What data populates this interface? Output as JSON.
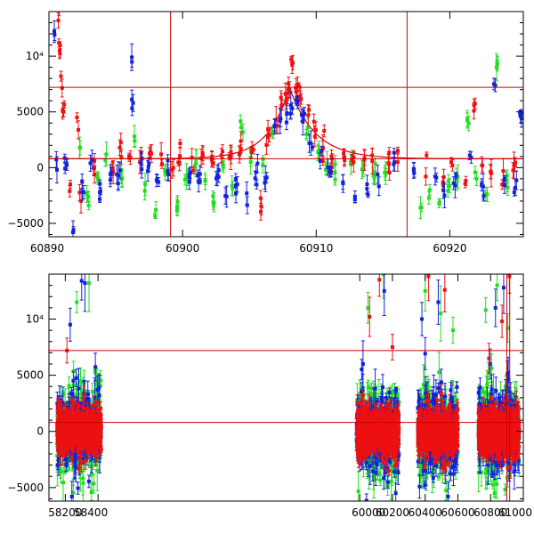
{
  "colors": {
    "band_g": "#22dd22",
    "band_r": "#ee1111",
    "band_b": "#1122dd",
    "marker_lines": "#cc0000"
  },
  "chart_data": [
    {
      "type": "scatter",
      "title": "",
      "xlabel": "",
      "ylabel": "",
      "xlim": [
        60890,
        60925.5
      ],
      "ylim": [
        -6200,
        14000
      ],
      "xticks": [
        60890,
        60900,
        60910,
        60920
      ],
      "xtick_labels": [
        "60890",
        "60900",
        "60910",
        "60920"
      ],
      "yticks": [
        -5000,
        0,
        5000,
        10000
      ],
      "ytick_labels": [
        "−5000",
        "0",
        "5000",
        "10⁴"
      ],
      "hlines": [
        7200,
        800
      ],
      "vlines": [
        60899.1,
        60916.8
      ],
      "model_curve": {
        "baseline": 800,
        "peak_time": 60908.0,
        "peak_flux": 7200,
        "rise_tau": 1.6,
        "fall_tau": 1.9
      },
      "series": [
        {
          "name": "g",
          "color": "#22dd22",
          "points": [
            [
              60892.3,
              1800
            ],
            [
              60892.9,
              -2600
            ],
            [
              60893.6,
              -800
            ],
            [
              60894.3,
              1200
            ],
            [
              60895.4,
              -200
            ],
            [
              60896.4,
              2800
            ],
            [
              60897.2,
              -1500
            ],
            [
              60898.0,
              -3800
            ],
            [
              60898.7,
              -500
            ],
            [
              60899.6,
              -3500
            ],
            [
              60900.3,
              -800
            ],
            [
              60901.0,
              400
            ],
            [
              60901.7,
              -1100
            ],
            [
              60902.3,
              -3200
            ],
            [
              60903.0,
              300
            ],
            [
              60903.7,
              -1600
            ],
            [
              60904.4,
              3600
            ],
            [
              60905.1,
              500
            ],
            [
              60906.0,
              200
            ],
            [
              60906.7,
              3200
            ],
            [
              60909.3,
              3000
            ],
            [
              60910.2,
              1500
            ],
            [
              60910.8,
              400
            ],
            [
              60911.4,
              -400
            ],
            [
              60912.6,
              300
            ],
            [
              60913.5,
              -100
            ],
            [
              60914.4,
              -600
            ],
            [
              60915.2,
              -500
            ],
            [
              60917.8,
              -3600
            ],
            [
              60918.5,
              -2000
            ],
            [
              60919.2,
              -3200
            ],
            [
              60919.9,
              -1200
            ],
            [
              60920.6,
              -800
            ],
            [
              60921.3,
              4400
            ],
            [
              60922.0,
              -1000
            ],
            [
              60922.8,
              -2400
            ],
            [
              60923.5,
              9000
            ],
            [
              60924.3,
              -1800
            ]
          ]
        },
        {
          "name": "r",
          "color": "#ee1111",
          "points": [
            [
              60890.7,
              13200
            ],
            [
              60890.8,
              10500
            ],
            [
              60890.9,
              8200
            ],
            [
              60891.1,
              5000
            ],
            [
              60891.6,
              -1500
            ],
            [
              60892.1,
              4500
            ],
            [
              60892.4,
              -3000
            ],
            [
              60893.4,
              600
            ],
            [
              60894.8,
              -400
            ],
            [
              60895.3,
              1800
            ],
            [
              60896.1,
              900
            ],
            [
              60896.8,
              500
            ],
            [
              60897.6,
              1400
            ],
            [
              60898.4,
              1200
            ],
            [
              60899.2,
              -200
            ],
            [
              60899.8,
              1000
            ],
            [
              60900.7,
              900
            ],
            [
              60901.5,
              1300
            ],
            [
              60902.2,
              1000
            ],
            [
              60902.9,
              1100
            ],
            [
              60903.6,
              900
            ],
            [
              60904.3,
              1300
            ],
            [
              60905.2,
              1800
            ],
            [
              60905.9,
              -3500
            ],
            [
              60906.4,
              2800
            ],
            [
              60907.0,
              4300
            ],
            [
              60907.4,
              5500
            ],
            [
              60907.7,
              6600
            ],
            [
              60907.9,
              7000
            ],
            [
              60908.2,
              9200
            ],
            [
              60908.5,
              6800
            ],
            [
              60908.8,
              6300
            ],
            [
              60909.4,
              4700
            ],
            [
              60909.9,
              2800
            ],
            [
              60910.5,
              1800
            ],
            [
              60911.2,
              800
            ],
            [
              60912.1,
              900
            ],
            [
              60912.8,
              500
            ],
            [
              60913.6,
              700
            ],
            [
              60914.2,
              600
            ],
            [
              60915.4,
              400
            ],
            [
              60916.1,
              500
            ],
            [
              60918.2,
              -800
            ],
            [
              60919.5,
              -1600
            ],
            [
              60920.2,
              200
            ],
            [
              60921.2,
              -1200
            ],
            [
              60921.8,
              5100
            ],
            [
              60922.4,
              200
            ],
            [
              60923.1,
              -500
            ],
            [
              60924.0,
              -300
            ],
            [
              60924.8,
              200
            ]
          ]
        },
        {
          "name": "b",
          "color": "#1122dd",
          "points": [
            [
              60890.4,
              12200
            ],
            [
              60890.6,
              -200
            ],
            [
              60891.3,
              400
            ],
            [
              60891.8,
              -5800
            ],
            [
              60892.6,
              -2200
            ],
            [
              60893.1,
              400
            ],
            [
              60893.8,
              -2200
            ],
            [
              60894.6,
              -600
            ],
            [
              60895.2,
              -700
            ],
            [
              60896.2,
              9900
            ],
            [
              60896.3,
              5800
            ],
            [
              60896.9,
              400
            ],
            [
              60897.4,
              -300
            ],
            [
              60898.1,
              -1000
            ],
            [
              60898.9,
              -300
            ],
            [
              60900.5,
              -600
            ],
            [
              60901.2,
              -1300
            ],
            [
              60902.6,
              -700
            ],
            [
              60903.3,
              -2600
            ],
            [
              60904.1,
              -1500
            ],
            [
              60904.8,
              -2300
            ],
            [
              60905.5,
              -400
            ],
            [
              60906.2,
              -1000
            ],
            [
              60906.9,
              3800
            ],
            [
              60907.3,
              4200
            ],
            [
              60907.8,
              4900
            ],
            [
              60908.1,
              5600
            ],
            [
              60908.6,
              5800
            ],
            [
              60909.0,
              4100
            ],
            [
              60909.6,
              2200
            ],
            [
              60910.4,
              1500
            ],
            [
              60911.0,
              -400
            ],
            [
              60912.0,
              -1300
            ],
            [
              60912.9,
              -2600
            ],
            [
              60913.8,
              -1900
            ],
            [
              60914.6,
              -600
            ],
            [
              60915.8,
              300
            ],
            [
              60917.3,
              -100
            ],
            [
              60918.9,
              -800
            ],
            [
              60919.6,
              -2500
            ],
            [
              60920.4,
              -1600
            ],
            [
              60921.6,
              900
            ],
            [
              60922.5,
              -1700
            ],
            [
              60923.3,
              7500
            ],
            [
              60924.1,
              -1600
            ],
            [
              60924.9,
              -1800
            ],
            [
              60925.3,
              4600
            ]
          ]
        }
      ]
    },
    {
      "type": "scatter",
      "title": "",
      "xlabel": "",
      "ylabel": "",
      "xlim": [
        58100,
        61000
      ],
      "ylim": [
        -6200,
        14000
      ],
      "xticks": [
        58200,
        58400,
        60000,
        60200,
        60400,
        60600,
        60800,
        61000
      ],
      "xtick_labels": [
        "58200",
        "58400",
        "60000",
        "60200",
        "60400",
        "60600",
        "60800",
        "61000"
      ],
      "yticks": [
        -5000,
        0,
        5000,
        10000
      ],
      "ytick_labels": [
        "−5000",
        "0",
        "5000",
        "10⁴"
      ],
      "hlines": [
        7200,
        800
      ],
      "vlines": [
        60899.1,
        60916.8
      ],
      "seasons": [
        [
          58150,
          58420
        ],
        [
          59980,
          60240
        ],
        [
          60355,
          60600
        ],
        [
          60725,
          60975
        ]
      ],
      "series": [
        {
          "name": "g",
          "color": "#22dd22",
          "spread": 2600,
          "outliers": [
            [
              58270,
              11500
            ],
            [
              58345,
              13200
            ],
            [
              58395,
              -3500
            ],
            [
              60050,
              11000
            ],
            [
              60145,
              14000
            ],
            [
              60400,
              12500
            ],
            [
              60495,
              10500
            ],
            [
              60570,
              9000
            ],
            [
              60770,
              10800
            ],
            [
              60840,
              13000
            ],
            [
              60905,
              9200
            ]
          ]
        },
        {
          "name": "b",
          "color": "#1122dd",
          "spread": 2300,
          "outliers": [
            [
              58230,
              9500
            ],
            [
              58300,
              13400
            ],
            [
              58320,
              13200
            ],
            [
              58240,
              -5800
            ],
            [
              60020,
              6000
            ],
            [
              60150,
              12500
            ],
            [
              60220,
              -5500
            ],
            [
              60380,
              10000
            ],
            [
              60480,
              11500
            ],
            [
              60540,
              -5800
            ],
            [
              60830,
              11000
            ],
            [
              60880,
              12800
            ]
          ]
        },
        {
          "name": "r",
          "color": "#ee1111",
          "spread": 1300,
          "outliers": [
            [
              58210,
              7200
            ],
            [
              60060,
              10200
            ],
            [
              60120,
              13500
            ],
            [
              60200,
              7500
            ],
            [
              60420,
              13800
            ],
            [
              60520,
              12600
            ],
            [
              60790,
              6500
            ],
            [
              60870,
              9800
            ],
            [
              60915,
              13800
            ]
          ]
        }
      ]
    }
  ]
}
